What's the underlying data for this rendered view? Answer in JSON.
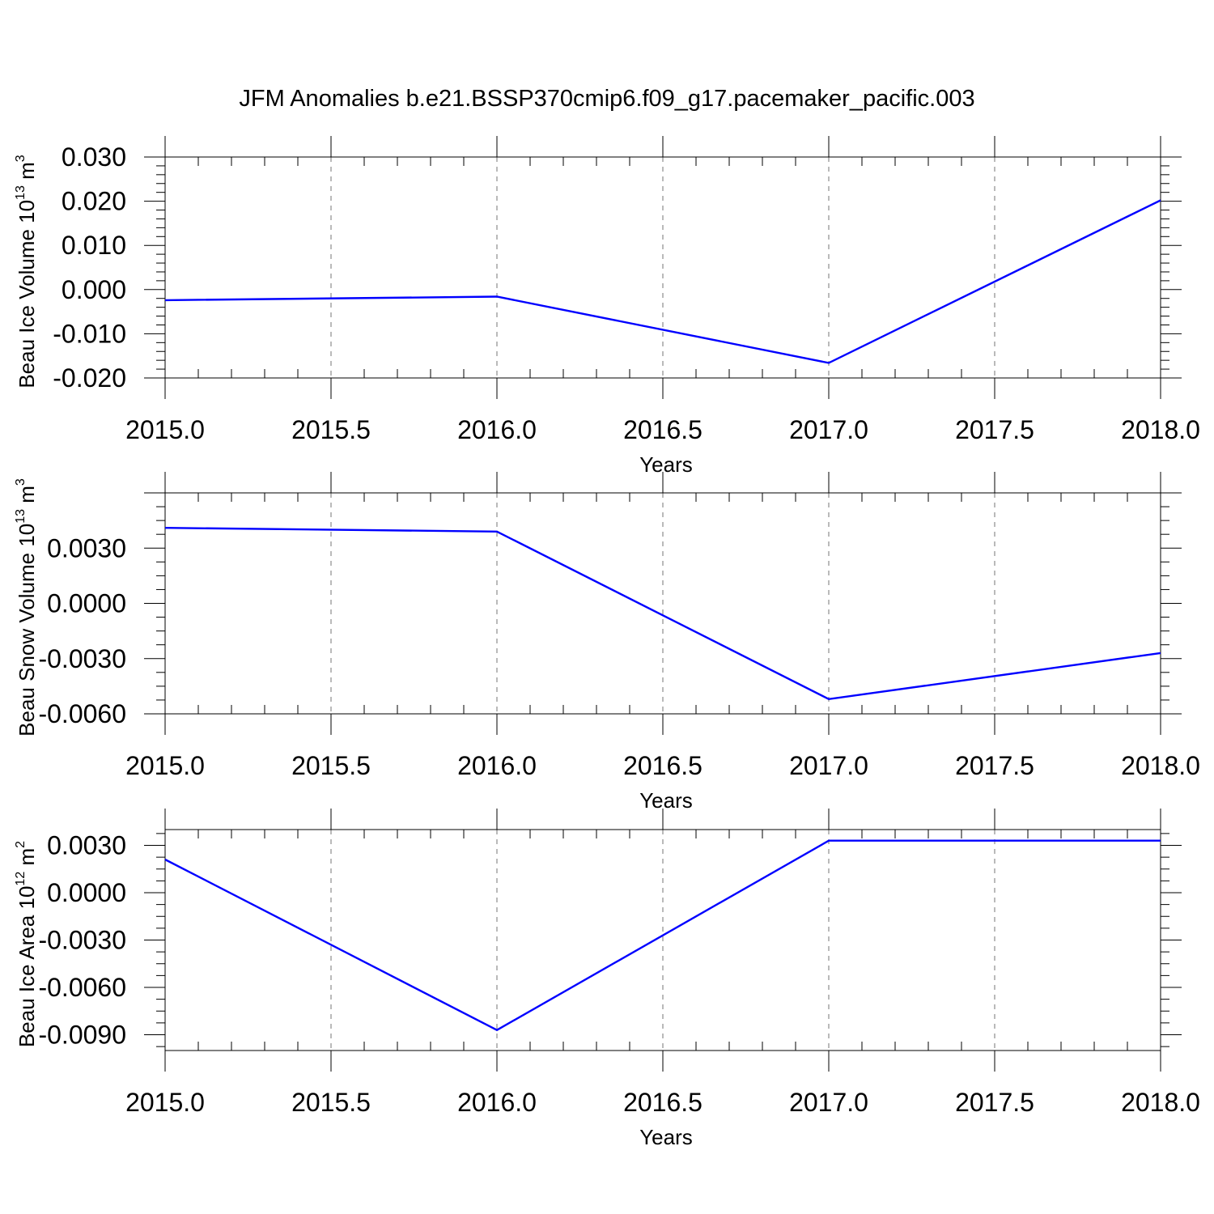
{
  "title": "JFM Anomalies b.e21.BSSP370cmip6.f09_g17.pacemaker_pacific.003",
  "colors": {
    "line": "#0000ff",
    "grid": "#8c8c8c",
    "frame": "#000000"
  },
  "chart_data": [
    {
      "type": "line",
      "xlabel": "Years",
      "ylabel": "Beau Ice Volume 10",
      "ylabel_exp": "13",
      "ylabel_unit": " m",
      "ylabel_unit_exp": "3",
      "xlim": [
        2015.0,
        2018.0
      ],
      "ylim": [
        -0.02,
        0.03
      ],
      "xticks": [
        "2015.0",
        "2015.5",
        "2016.0",
        "2016.5",
        "2017.0",
        "2017.5",
        "2018.0"
      ],
      "yticks": [
        "-0.020",
        "-0.010",
        "0.000",
        "0.010",
        "0.020",
        "0.030"
      ],
      "x": [
        2015.0,
        2016.0,
        2017.0,
        2018.0
      ],
      "y": [
        -0.0024,
        -0.0016,
        -0.0166,
        0.0202
      ],
      "grid": "vertical dashed at major x ticks"
    },
    {
      "type": "line",
      "xlabel": "Years",
      "ylabel": "Beau Snow Volume 10",
      "ylabel_exp": "13",
      "ylabel_unit": " m",
      "ylabel_unit_exp": "3",
      "xlim": [
        2015.0,
        2018.0
      ],
      "ylim": [
        -0.006,
        0.006
      ],
      "xticks": [
        "2015.0",
        "2015.5",
        "2016.0",
        "2016.5",
        "2017.0",
        "2017.5",
        "2018.0"
      ],
      "yticks": [
        "-0.0060",
        "-0.0030",
        "0.0000",
        "0.0030"
      ],
      "x": [
        2015.0,
        2016.0,
        2017.0,
        2018.0
      ],
      "y": [
        0.0041,
        0.0039,
        -0.0052,
        -0.0027
      ],
      "grid": "vertical dashed at major x ticks"
    },
    {
      "type": "line",
      "xlabel": "Years",
      "ylabel": "Beau Ice Area 10",
      "ylabel_exp": "12",
      "ylabel_unit": " m",
      "ylabel_unit_exp": "2",
      "xlim": [
        2015.0,
        2018.0
      ],
      "ylim": [
        -0.01,
        0.004
      ],
      "xticks": [
        "2015.0",
        "2015.5",
        "2016.0",
        "2016.5",
        "2017.0",
        "2017.5",
        "2018.0"
      ],
      "yticks": [
        "-0.0090",
        "-0.0060",
        "-0.0030",
        "0.0000",
        "0.0030"
      ],
      "x": [
        2015.0,
        2016.0,
        2017.0,
        2018.0
      ],
      "y": [
        0.0021,
        -0.0087,
        0.0033,
        0.0033
      ],
      "grid": "vertical dashed at major x ticks"
    }
  ]
}
